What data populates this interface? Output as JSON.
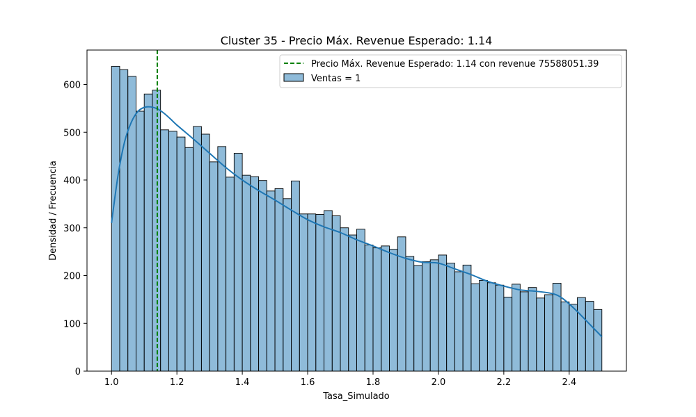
{
  "chart_data": {
    "type": "bar",
    "title": "Cluster 35 - Precio Máx. Revenue Esperado: 1.14",
    "xlabel": "Tasa_Simulado",
    "ylabel": "Densidad / Frecuencia",
    "xlim": [
      0.925,
      2.575
    ],
    "ylim": [
      0,
      672
    ],
    "xticks": [
      1.0,
      1.2,
      1.4,
      1.6,
      1.8,
      2.0,
      2.2,
      2.4
    ],
    "xtick_labels": [
      "1.0",
      "1.2",
      "1.4",
      "1.6",
      "1.8",
      "2.0",
      "2.2",
      "2.4"
    ],
    "yticks": [
      0,
      100,
      200,
      300,
      400,
      500,
      600
    ],
    "ytick_labels": [
      "0",
      "100",
      "200",
      "300",
      "400",
      "500",
      "600"
    ],
    "bin_start": 1.0,
    "bin_end": 2.5,
    "bins": 60,
    "histogram": {
      "name": "Ventas = 1",
      "color": "#1f77b4",
      "values": [
        638,
        631,
        617,
        544,
        580,
        588,
        505,
        502,
        490,
        468,
        512,
        496,
        438,
        470,
        406,
        456,
        410,
        407,
        399,
        377,
        382,
        361,
        398,
        329,
        329,
        328,
        336,
        325,
        300,
        285,
        297,
        264,
        258,
        262,
        255,
        281,
        240,
        221,
        229,
        233,
        243,
        226,
        208,
        222,
        183,
        190,
        185,
        180,
        155,
        182,
        166,
        175,
        153,
        160,
        184,
        145,
        140,
        154,
        146,
        129
      ]
    },
    "kde": {
      "color": "#1f77b4",
      "x": [
        1.0,
        1.02,
        1.04,
        1.06,
        1.08,
        1.1,
        1.12,
        1.14,
        1.16,
        1.18,
        1.2,
        1.25,
        1.3,
        1.35,
        1.4,
        1.45,
        1.5,
        1.55,
        1.6,
        1.65,
        1.7,
        1.75,
        1.8,
        1.85,
        1.9,
        1.95,
        2.0,
        2.05,
        2.1,
        2.15,
        2.2,
        2.25,
        2.3,
        2.35,
        2.38,
        2.42,
        2.46,
        2.5
      ],
      "y": [
        310,
        410,
        480,
        520,
        543,
        552,
        553,
        549,
        540,
        528,
        515,
        486,
        456,
        426,
        400,
        378,
        358,
        337,
        317,
        302,
        290,
        275,
        262,
        248,
        236,
        228,
        226,
        214,
        202,
        188,
        178,
        170,
        167,
        162,
        152,
        128,
        100,
        72
      ]
    },
    "vline": {
      "x": 1.14,
      "color": "#008000",
      "label": "Precio Máx. Revenue Esperado: 1.14 con revenue 75588051.39"
    },
    "legend": {
      "placement": "top-right",
      "entries": [
        "Precio Máx. Revenue Esperado: 1.14 con revenue 75588051.39",
        "Ventas = 1"
      ]
    },
    "grid": false
  }
}
